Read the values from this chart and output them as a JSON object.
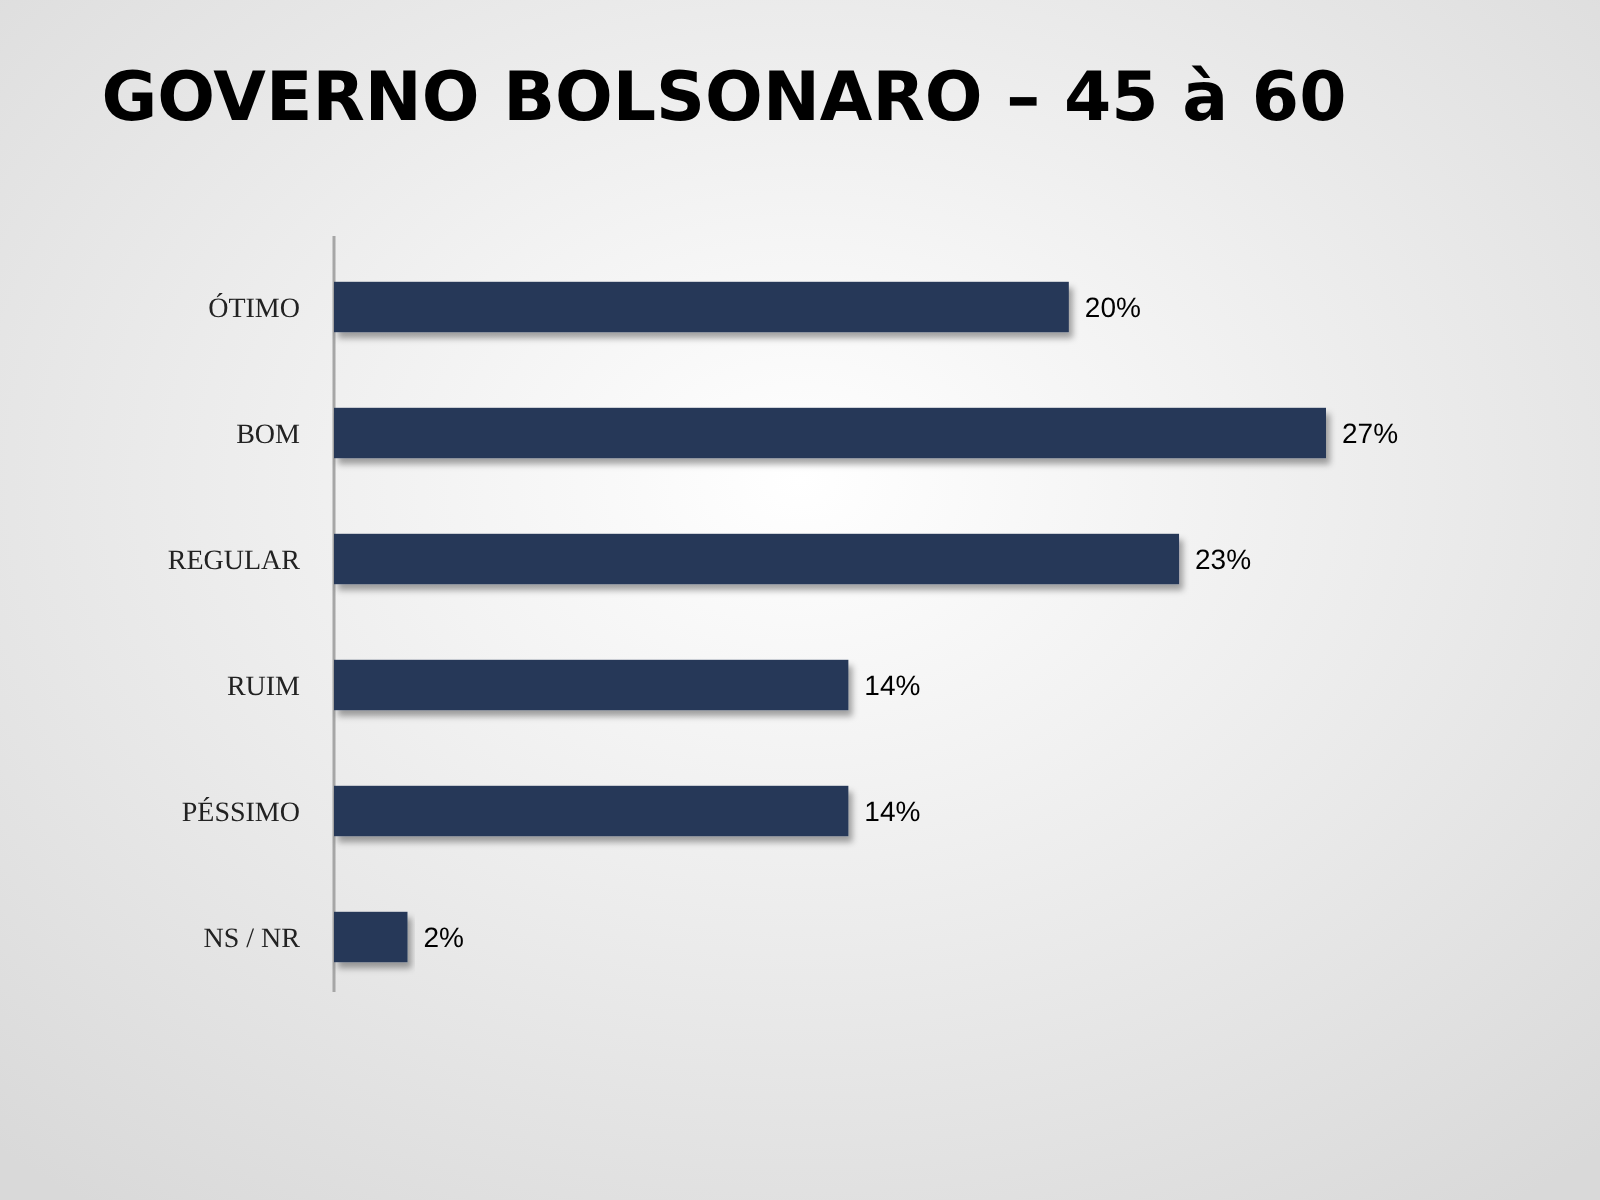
{
  "chart_data": {
    "type": "bar",
    "orientation": "horizontal",
    "title": "GOVERNO BOLSONARO – 45 à 60",
    "categories": [
      "ÓTIMO",
      "BOM",
      "REGULAR",
      "RUIM",
      "PÉSSIMO",
      "NS / NR"
    ],
    "values": [
      20,
      27,
      23,
      14,
      14,
      2
    ],
    "value_labels": [
      "20%",
      "27%",
      "23%",
      "14%",
      "14%",
      "2%"
    ],
    "color": "#253858"
  }
}
